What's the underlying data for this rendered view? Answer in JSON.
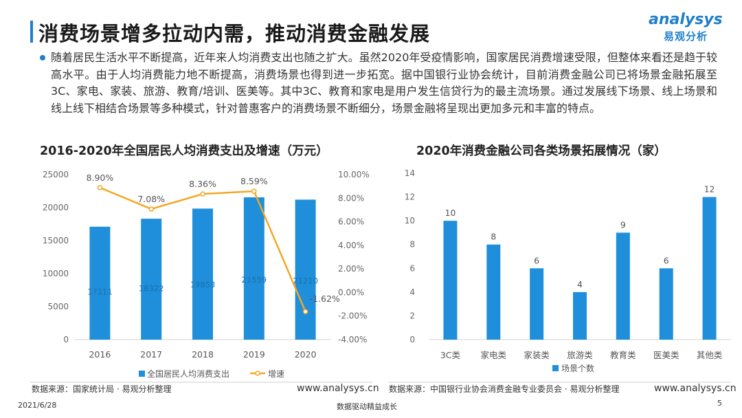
{
  "header": {
    "title": "消费场景增多拉动内需，推动消费金融发展",
    "logo_en": "analysys",
    "logo_cn": "易观分析"
  },
  "paragraph": "随着居民生活水平不断提高，近年来人均消费支出也随之扩大。虽然2020年受疫情影响，国家居民消费增速受限，但整体来看还是趋于较高水平。由于人均消费能力地不断提高，消费场景也得到进一步拓宽。据中国银行业协会统计，目前消费金融公司已将场景金融拓展至3C、家电、家装、旅游、教育/培训、医美等。其中3C、教育和家电是用户发生信贷行为的最主流场景。通过发展线下场景、线上场景和线上线下相结合场景等多种模式，针对普惠客户的消费场景不断细分，场景金融将呈现出更加多元和丰富的特点。",
  "chart_data": [
    {
      "type": "bar+line",
      "title": "2016-2020年全国居民人均消费支出及增速（万元）",
      "categories": [
        "2016",
        "2017",
        "2018",
        "2019",
        "2020"
      ],
      "series": [
        {
          "name": "全国居民人均消费支出",
          "type": "bar",
          "axis": "left",
          "values": [
            17111,
            18322,
            19853,
            21559,
            21210
          ],
          "labels": [
            "17111",
            "18322",
            "19853",
            "21559",
            "21210"
          ]
        },
        {
          "name": "增速",
          "type": "line",
          "axis": "right",
          "values": [
            8.9,
            7.08,
            8.36,
            8.59,
            -1.62
          ],
          "labels": [
            "8.90%",
            "7.08%",
            "8.36%",
            "8.59%",
            "-1.62%"
          ]
        }
      ],
      "y_left": {
        "min": 0,
        "max": 25000,
        "ticks": [
          "0",
          "5000",
          "10000",
          "15000",
          "20000",
          "25000"
        ]
      },
      "y_right": {
        "min": -4,
        "max": 10,
        "ticks": [
          "-4.00%",
          "-2.00%",
          "0.00%",
          "2.00%",
          "4.00%",
          "6.00%",
          "8.00%",
          "10.00%"
        ]
      },
      "colors": {
        "bar": "#1f8fdb",
        "line": "#f5a623"
      },
      "legend": "bottom"
    },
    {
      "type": "bar",
      "title": "2020年消费金融公司各类场景拓展情况（家）",
      "categories": [
        "3C类",
        "家电类",
        "家装类",
        "旅游类",
        "教育类",
        "医美类",
        "其他类"
      ],
      "series": [
        {
          "name": "场景个数",
          "values": [
            10,
            8,
            6,
            4,
            9,
            6,
            12
          ],
          "labels": [
            "10",
            "8",
            "6",
            "4",
            "9",
            "6",
            "12"
          ]
        }
      ],
      "ylim": [
        0,
        14
      ],
      "y_ticks": [
        "0",
        "2",
        "4",
        "6",
        "8",
        "10",
        "12",
        "14"
      ],
      "colors": {
        "bar": "#1f8fdb"
      },
      "legend": "bottom"
    }
  ],
  "footer": {
    "source_left": "数据来源：国家统计局 · 易观分析整理",
    "url_left": "www.analysys.cn",
    "source_right": "数据来源：中国银行业协会消费金融专业委员会 · 易观分析整理",
    "url_right": "www.analysys.cn",
    "date": "2021/6/28",
    "slogan": "数据驱动精益成长",
    "page": "5"
  }
}
